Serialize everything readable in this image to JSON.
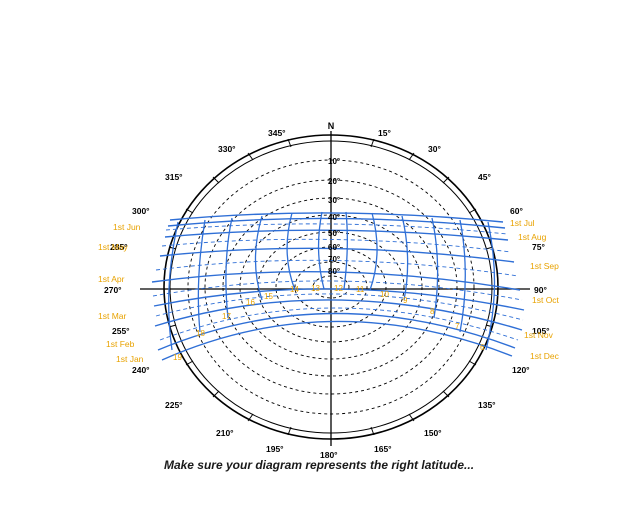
{
  "north_label": "N",
  "colors": {
    "outline": "#000000",
    "path": "#2f6fd6",
    "orange": "#e8a200"
  },
  "azimuth_labels": [
    "345°",
    "15°",
    "330°",
    "30°",
    "315°",
    "45°",
    "300°",
    "60°",
    "285°",
    "75°",
    "270°",
    "90°",
    "255°",
    "105°",
    "240°",
    "120°",
    "225°",
    "135°",
    "210°",
    "150°",
    "195°",
    "165°",
    "180°"
  ],
  "altitude_labels": [
    "10°",
    "20°",
    "30°",
    "40°",
    "50°",
    "60°",
    "70°",
    "80°"
  ],
  "date_labels": [
    "1st Jun",
    "1st Jul",
    "1st May",
    "1st Aug",
    "1st Apr",
    "1st Sep",
    "1st Mar",
    "1st Oct",
    "1st Feb",
    "1st Nov",
    "1st Jan",
    "1st Dec"
  ],
  "hour_labels": [
    "19",
    "18",
    "17",
    "16",
    "15",
    "14",
    "13",
    "12",
    "11",
    "10",
    "9",
    "8",
    "7",
    "6"
  ],
  "caption": "Make sure your diagram represents the right latitude..."
}
